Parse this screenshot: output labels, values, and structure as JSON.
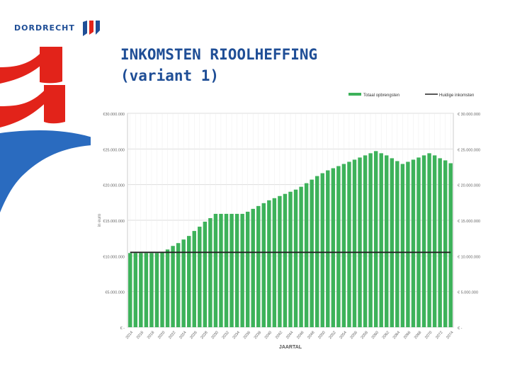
{
  "brand": {
    "name": "DORDRECHT",
    "colors": {
      "blue": "#1f4e96",
      "red": "#e2231a"
    }
  },
  "slide": {
    "title_line1": "INKOMSTEN RIOOLHEFFING",
    "title_line2": "(variant 1)"
  },
  "chart_data": {
    "type": "bar",
    "title": "",
    "xlabel": "JAARTAL",
    "ylabel": "in euro",
    "ylim": [
      0,
      30000000
    ],
    "yticks": [
      0,
      5000000,
      10000000,
      15000000,
      20000000,
      25000000,
      30000000
    ],
    "ytick_labels_left": [
      "€ -",
      "€5.000.000",
      "€10.000.000",
      "€15.000.000",
      "€20.000.000",
      "€25.000.000",
      "€30.000.000"
    ],
    "ytick_labels_right": [
      "€ -",
      "€ 5.000.000",
      "€ 10.000.000",
      "€ 15.000.000",
      "€ 20.000.000",
      "€ 25.000.000",
      "€ 30.000.000"
    ],
    "grid": true,
    "legend_position": "top-right",
    "xtick_labels": [
      "2014",
      "2016",
      "2018",
      "2020",
      "2022",
      "2024",
      "2026",
      "2028",
      "2030",
      "2032",
      "2034",
      "2036",
      "2038",
      "2040",
      "2042",
      "2044",
      "2046",
      "2048",
      "2050",
      "2052",
      "2054",
      "2056",
      "2058",
      "2060",
      "2062",
      "2064",
      "2066",
      "2068",
      "2070",
      "2072",
      "2074"
    ],
    "x": [
      2014,
      2015,
      2016,
      2017,
      2018,
      2019,
      2020,
      2021,
      2022,
      2023,
      2024,
      2025,
      2026,
      2027,
      2028,
      2029,
      2030,
      2031,
      2032,
      2033,
      2034,
      2035,
      2036,
      2037,
      2038,
      2039,
      2040,
      2041,
      2042,
      2043,
      2044,
      2045,
      2046,
      2047,
      2048,
      2049,
      2050,
      2051,
      2052,
      2053,
      2054,
      2055,
      2056,
      2057,
      2058,
      2059,
      2060,
      2061,
      2062,
      2063,
      2064,
      2065,
      2066,
      2067,
      2068,
      2069,
      2070,
      2071,
      2072,
      2073,
      2074
    ],
    "series": [
      {
        "name": "Totaal opbrengsten",
        "type": "bar",
        "color": "#3db25a",
        "values": [
          10400000,
          10400000,
          10400000,
          10400000,
          10400000,
          10400000,
          10500000,
          10900000,
          11400000,
          11800000,
          12300000,
          12800000,
          13500000,
          14100000,
          14800000,
          15300000,
          15900000,
          15900000,
          15900000,
          15900000,
          15900000,
          15900000,
          16200000,
          16600000,
          17000000,
          17400000,
          17800000,
          18100000,
          18400000,
          18700000,
          19000000,
          19300000,
          19700000,
          20200000,
          20700000,
          21200000,
          21600000,
          22000000,
          22300000,
          22600000,
          22900000,
          23200000,
          23500000,
          23800000,
          24100000,
          24400000,
          24700000,
          24400000,
          24100000,
          23700000,
          23300000,
          22900000,
          23200000,
          23500000,
          23800000,
          24100000,
          24400000,
          24100000,
          23700000,
          23400000,
          23000000
        ]
      },
      {
        "name": "Huidige inkomsten",
        "type": "line",
        "color": "#222222",
        "values": [
          10500000,
          10500000,
          10500000,
          10500000,
          10500000,
          10500000,
          10500000,
          10500000,
          10500000,
          10500000,
          10500000,
          10500000,
          10500000,
          10500000,
          10500000,
          10500000,
          10500000,
          10500000,
          10500000,
          10500000,
          10500000,
          10500000,
          10500000,
          10500000,
          10500000,
          10500000,
          10500000,
          10500000,
          10500000,
          10500000,
          10500000,
          10500000,
          10500000,
          10500000,
          10500000,
          10500000,
          10500000,
          10500000,
          10500000,
          10500000,
          10500000,
          10500000,
          10500000,
          10500000,
          10500000,
          10500000,
          10500000,
          10500000,
          10500000,
          10500000,
          10500000,
          10500000,
          10500000,
          10500000,
          10500000,
          10500000,
          10500000,
          10500000,
          10500000,
          10500000,
          10500000
        ]
      }
    ]
  }
}
